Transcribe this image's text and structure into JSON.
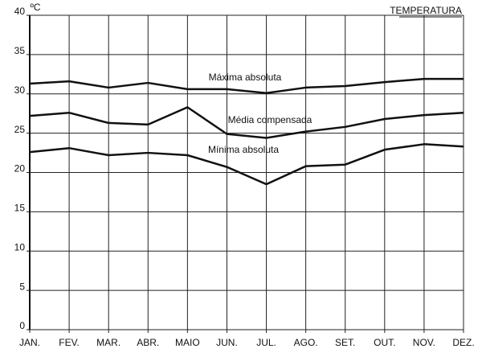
{
  "chart_data": {
    "type": "line",
    "unit": "ºC",
    "title": "TEMPERATURA",
    "categories": [
      "JAN.",
      "FEV.",
      "MAR.",
      "ABR.",
      "MAIO",
      "JUN.",
      "JUL.",
      "AGO.",
      "SET.",
      "OUT.",
      "NOV.",
      "DEZ."
    ],
    "series": [
      {
        "name": "Máxima absoluta",
        "color": "#111111",
        "values": [
          31.3,
          31.6,
          30.8,
          31.4,
          30.6,
          30.6,
          30.1,
          30.8,
          31.0,
          31.5,
          31.9,
          31.9
        ]
      },
      {
        "name": "Média compensada",
        "color": "#111111",
        "values": [
          27.2,
          27.6,
          26.3,
          26.1,
          28.3,
          24.9,
          24.4,
          25.2,
          25.8,
          26.8,
          27.3,
          27.6
        ]
      },
      {
        "name": "Mínima absoluta",
        "color": "#111111",
        "values": [
          22.6,
          23.1,
          22.2,
          22.5,
          22.2,
          20.7,
          18.5,
          20.8,
          21.0,
          22.9,
          23.6,
          23.3
        ]
      }
    ],
    "ylim": [
      0,
      40
    ],
    "yticks": [
      0,
      5,
      10,
      15,
      20,
      25,
      30,
      35,
      40
    ],
    "grid": true
  }
}
